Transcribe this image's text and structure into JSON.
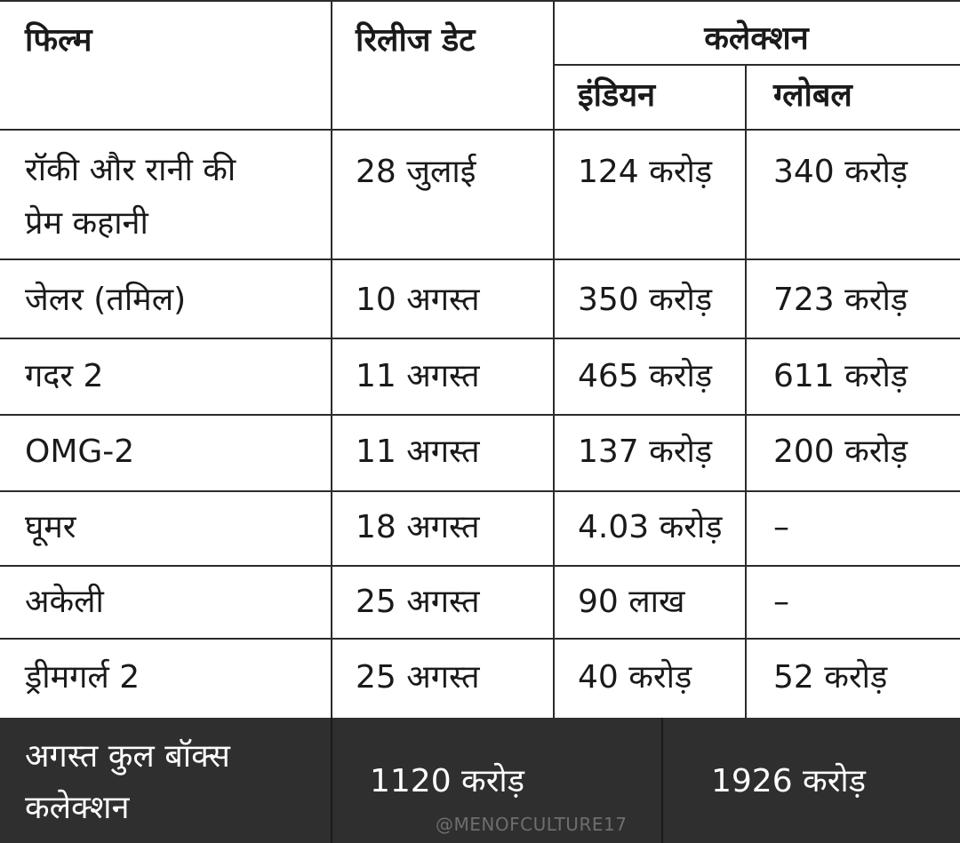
{
  "header": {
    "film": "फिल्म",
    "release_date": "रिलीज डेट",
    "collection": "कलेक्शन",
    "indian": "इंडियन",
    "global": "ग्लोबल"
  },
  "rows": [
    {
      "film_line1": "रॉकी और रानी की",
      "film_line2": "प्रेम कहानी",
      "date": "28 जुलाई",
      "indian": "124 करोड़",
      "global": "340 करोड़"
    },
    {
      "film_line1": "जेलर (तमिल)",
      "film_line2": "",
      "date": "10 अगस्त",
      "indian": "350 करोड़",
      "global": "723 करोड़"
    },
    {
      "film_line1": "गदर 2",
      "film_line2": "",
      "date": "11 अगस्त",
      "indian": "465 करोड़",
      "global": "611 करोड़"
    },
    {
      "film_line1": "OMG-2",
      "film_line2": "",
      "date": "11 अगस्त",
      "indian": "137 करोड़",
      "global": "200 करोड़"
    },
    {
      "film_line1": "घूमर",
      "film_line2": "",
      "date": "18 अगस्त",
      "indian": "4.03 करोड़",
      "global": "–"
    },
    {
      "film_line1": "अकेली",
      "film_line2": "",
      "date": "25 अगस्त",
      "indian": "90 लाख",
      "global": "–"
    },
    {
      "film_line1": "ड्रीमगर्ल 2",
      "film_line2": "",
      "date": "25 अगस्त",
      "indian": "40 करोड़",
      "global": "52 करोड़"
    }
  ],
  "footer": {
    "label_line1": "अगस्त कुल बॉक्स",
    "label_line2": "कलेक्शन",
    "indian_total": "1120 करोड़",
    "global_total": "1926 करोड़"
  },
  "watermark": "@MENOFCULTURE17",
  "colors": {
    "footer_bg": "#2f2f2f",
    "grid_line": "#2b2b2b",
    "text": "#1a1a1a"
  }
}
